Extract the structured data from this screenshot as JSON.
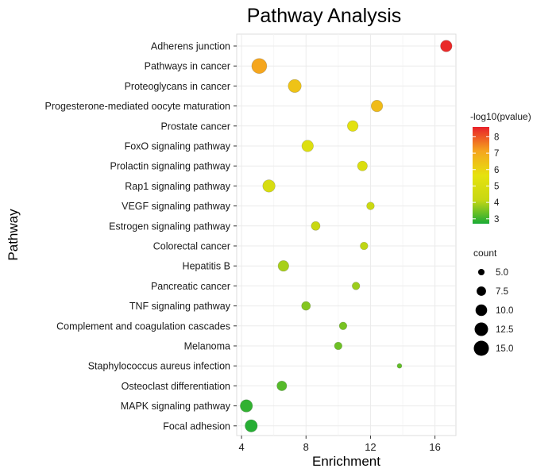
{
  "chart_data": {
    "type": "scatter",
    "title": "Pathway Analysis",
    "xlabel": "Enrichment",
    "ylabel": "Pathway",
    "xlim": [
      3.7,
      17.3
    ],
    "xticks": [
      4,
      8,
      12,
      16
    ],
    "xtick_labels": [
      "4",
      "8",
      "12",
      "16"
    ],
    "grid": true,
    "categories": [
      "Adherens junction",
      "Pathways in cancer",
      "Proteoglycans in cancer",
      "Progesterone-mediated oocyte maturation",
      "Prostate cancer",
      "FoxO signaling pathway",
      "Prolactin signaling pathway",
      "Rap1 signaling pathway",
      "VEGF signaling pathway",
      "Estrogen signaling pathway",
      "Colorectal cancer",
      "Hepatitis B",
      "Pancreatic cancer",
      "TNF signaling pathway",
      "Complement and coagulation cascades",
      "Melanoma",
      "Staphylococcus aureus infection",
      "Osteoclast differentiation",
      "MAPK signaling pathway",
      "Focal adhesion"
    ],
    "points": [
      {
        "pathway": "Adherens junction",
        "enrichment": 16.7,
        "count": 10,
        "neg_log10_pvalue": 8.5
      },
      {
        "pathway": "Pathways in cancer",
        "enrichment": 5.1,
        "count": 15,
        "neg_log10_pvalue": 7.1
      },
      {
        "pathway": "Proteoglycans in cancer",
        "enrichment": 7.3,
        "count": 12,
        "neg_log10_pvalue": 6.4
      },
      {
        "pathway": "Progesterone-mediated oocyte maturation",
        "enrichment": 12.4,
        "count": 10,
        "neg_log10_pvalue": 6.6
      },
      {
        "pathway": "Prostate cancer",
        "enrichment": 10.9,
        "count": 9,
        "neg_log10_pvalue": 5.5
      },
      {
        "pathway": "FoxO signaling pathway",
        "enrichment": 8.1,
        "count": 10,
        "neg_log10_pvalue": 5.2
      },
      {
        "pathway": "Prolactin signaling pathway",
        "enrichment": 11.5,
        "count": 8,
        "neg_log10_pvalue": 5.1
      },
      {
        "pathway": "Rap1 signaling pathway",
        "enrichment": 5.7,
        "count": 11,
        "neg_log10_pvalue": 4.9
      },
      {
        "pathway": "VEGF signaling pathway",
        "enrichment": 12.0,
        "count": 6,
        "neg_log10_pvalue": 4.3
      },
      {
        "pathway": "Estrogen signaling pathway",
        "enrichment": 8.6,
        "count": 7,
        "neg_log10_pvalue": 4.2
      },
      {
        "pathway": "Colorectal cancer",
        "enrichment": 11.6,
        "count": 6,
        "neg_log10_pvalue": 4.1
      },
      {
        "pathway": "Hepatitis B",
        "enrichment": 6.6,
        "count": 9,
        "neg_log10_pvalue": 3.9
      },
      {
        "pathway": "Pancreatic cancer",
        "enrichment": 11.1,
        "count": 6,
        "neg_log10_pvalue": 3.8
      },
      {
        "pathway": "TNF signaling pathway",
        "enrichment": 8.0,
        "count": 7,
        "neg_log10_pvalue": 3.6
      },
      {
        "pathway": "Complement and coagulation cascades",
        "enrichment": 10.3,
        "count": 6,
        "neg_log10_pvalue": 3.5
      },
      {
        "pathway": "Melanoma",
        "enrichment": 10.0,
        "count": 6,
        "neg_log10_pvalue": 3.4
      },
      {
        "pathway": "Staphylococcus aureus infection",
        "enrichment": 13.8,
        "count": 4,
        "neg_log10_pvalue": 3.3
      },
      {
        "pathway": "Osteoclast differentiation",
        "enrichment": 6.5,
        "count": 8,
        "neg_log10_pvalue": 3.2
      },
      {
        "pathway": "MAPK signaling pathway",
        "enrichment": 4.3,
        "count": 11,
        "neg_log10_pvalue": 2.9
      },
      {
        "pathway": "Focal adhesion",
        "enrichment": 4.6,
        "count": 11,
        "neg_log10_pvalue": 2.8
      }
    ],
    "color_legend": {
      "title": "-log10(pvalue)",
      "min": 2.7,
      "max": 8.6,
      "ticks": [
        3,
        4,
        5,
        6,
        7,
        8
      ],
      "tick_labels": [
        "3",
        "4",
        "5",
        "6",
        "7",
        "8"
      ],
      "colors": [
        "#1aab36",
        "#c8d812",
        "#e6e20e",
        "#f5a51e",
        "#e8212a"
      ]
    },
    "size_legend": {
      "title": "count",
      "values": [
        5.0,
        7.5,
        10.0,
        12.5,
        15.0
      ],
      "labels": [
        "5.0",
        "7.5",
        "10.0",
        "12.5",
        "15.0"
      ],
      "count_range": [
        4,
        15
      ]
    }
  }
}
